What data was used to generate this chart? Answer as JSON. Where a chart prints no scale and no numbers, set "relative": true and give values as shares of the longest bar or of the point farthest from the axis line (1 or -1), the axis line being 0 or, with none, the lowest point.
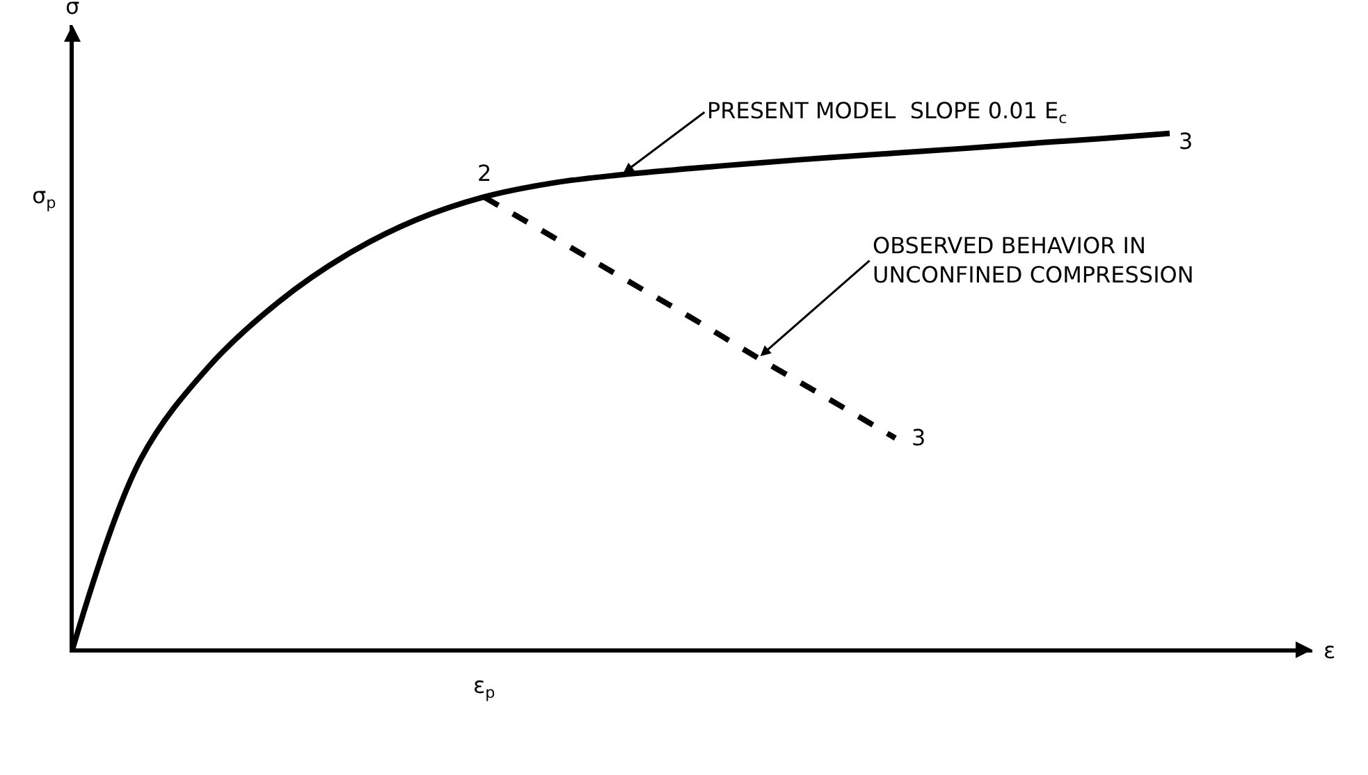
{
  "chart_data": {
    "type": "line",
    "relative": true,
    "categories": [
      null,
      null,
      null,
      null,
      null,
      null,
      null,
      null,
      null,
      null,
      null,
      null,
      null,
      null,
      null,
      null,
      null
    ],
    "series": [
      {
        "color": "#000000",
        "line_style": "solid",
        "values": [
          0,
          0.37,
          0.55,
          0.673,
          0.765,
          0.832,
          0.877,
          0.904,
          0.92,
          0.932,
          0.943,
          0.953,
          0.962,
          0.971,
          0.981,
          0.99,
          1
        ]
      },
      {
        "color": "#000000",
        "line_style": "dashed",
        "values": [
          null,
          null,
          null,
          null,
          null,
          null,
          0.877,
          0.8,
          0.722,
          0.645,
          0.565,
          0.488,
          0.41,
          null,
          null,
          null,
          null
        ]
      }
    ],
    "annotations": [
      "σ",
      "ε",
      "σ$_{p}$",
      "ε$_{p}$",
      "2",
      "3",
      "3",
      "PRESENT MODEL  SLOPE 0.01 E$_{c}$",
      "OBSERVED BEHAVIOR IN\nUNCONFINED COMPRESSION"
    ],
    "legend": false
  }
}
